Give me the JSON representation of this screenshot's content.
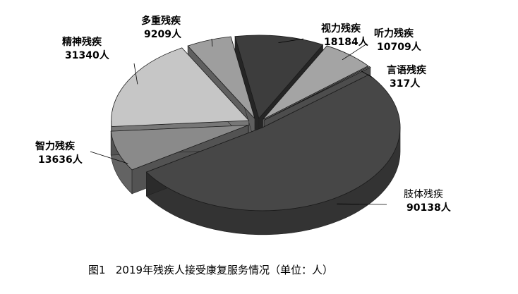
{
  "figure": {
    "number": "图1",
    "title": "2019年残疾人接受康复服务情况（单位：人）"
  },
  "chart_data": {
    "type": "pie",
    "title": "2019年残疾人接受康复服务情况（单位：人）",
    "unit": "人",
    "slices": [
      {
        "name": "视力残疾",
        "value": 18184,
        "value_label": "18184人",
        "color": "#3d3d3d"
      },
      {
        "name": "听力残疾",
        "value": 10709,
        "value_label": "10709人",
        "color": "#a4a4a4"
      },
      {
        "name": "言语残疾",
        "value": 317,
        "value_label": "317人",
        "color": "#808080"
      },
      {
        "name": "肢体残疾",
        "value": 90138,
        "value_label": "90138人",
        "color": "#474747"
      },
      {
        "name": "智力残疾",
        "value": 13636,
        "value_label": "13636人",
        "color": "#8a8a8a"
      },
      {
        "name": "精神残疾",
        "value": 31340,
        "value_label": "31340人",
        "color": "#c6c6c6"
      },
      {
        "name": "多重残疾",
        "value": 9209,
        "value_label": "9209人",
        "color": "#9e9e9e"
      }
    ]
  }
}
